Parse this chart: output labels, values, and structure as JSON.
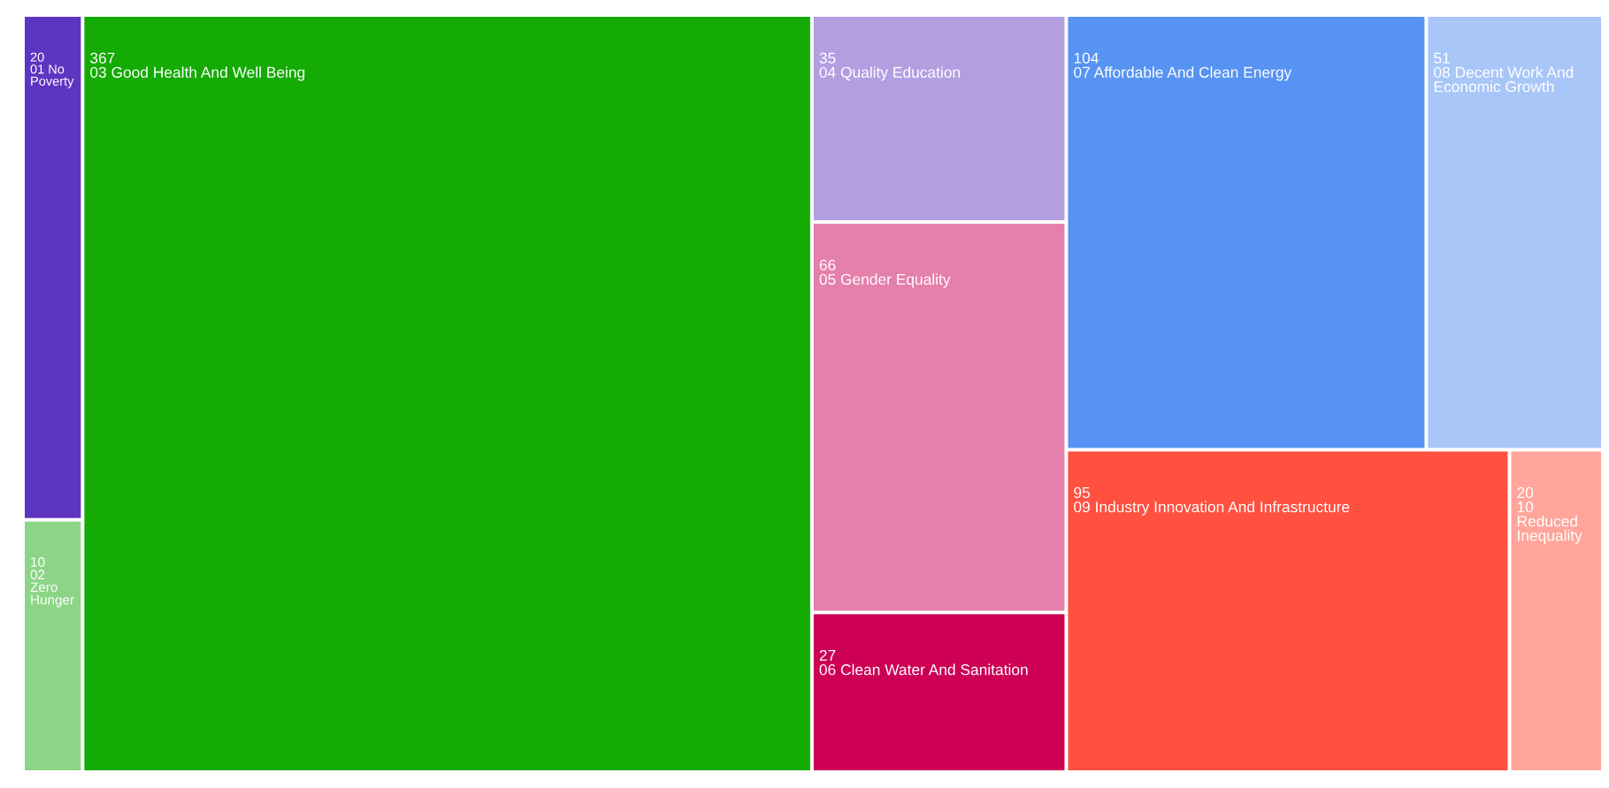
{
  "chart_data": {
    "type": "other",
    "categories": [
      "01 No Poverty",
      "02 Zero Hunger",
      "03 Good Health And Well Being",
      "04 Quality Education",
      "05 Gender Equality",
      "06 Clean Water And Sanitation",
      "07 Affordable And Clean Energy",
      "08 Decent Work And Economic Growth",
      "09 Industry Innovation And Infrastructure",
      "10 Reduced Inequality"
    ],
    "values": [
      20,
      10,
      367,
      35,
      66,
      27,
      104,
      51,
      95,
      20
    ],
    "colors": [
      "#5e35c0",
      "#8cd586",
      "#14ab05",
      "#b39ee0",
      "#e57fab",
      "#cd0056",
      "#5793f3",
      "#a9c6f8",
      "#ff5040",
      "#ffa59b"
    ],
    "data_labels": true
  }
}
